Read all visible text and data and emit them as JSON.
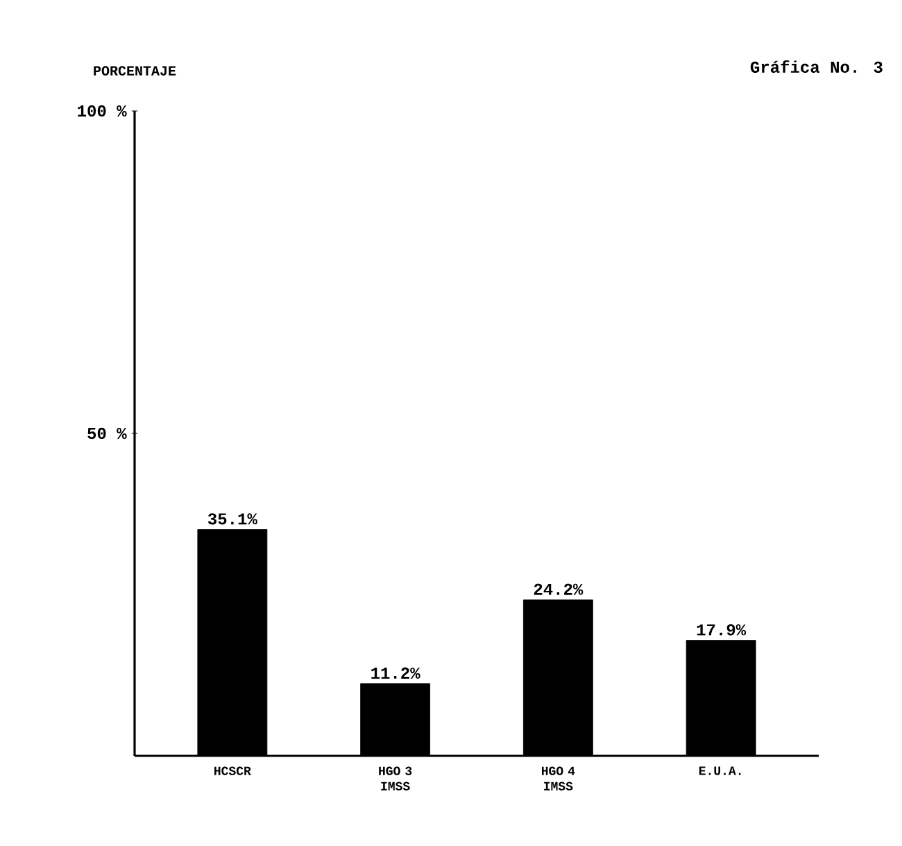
{
  "chart_data": {
    "type": "bar",
    "title": "Gráfica No. 3",
    "ylabel": "PORCENTAJE",
    "categories": [
      "HCSCR",
      "HGO 3 IMSS",
      "HGO 4 IMSS",
      "E.U.A."
    ],
    "values": [
      35.1,
      11.2,
      24.2,
      17.9
    ],
    "value_labels": [
      "35.1%",
      "11.2%",
      "24.2%",
      "17.9%"
    ],
    "color": "#000000",
    "ylim": [
      0,
      100
    ],
    "yticks": [
      {
        "value": 50,
        "label": "50 %"
      },
      {
        "value": 100,
        "label": "100 %"
      }
    ]
  }
}
